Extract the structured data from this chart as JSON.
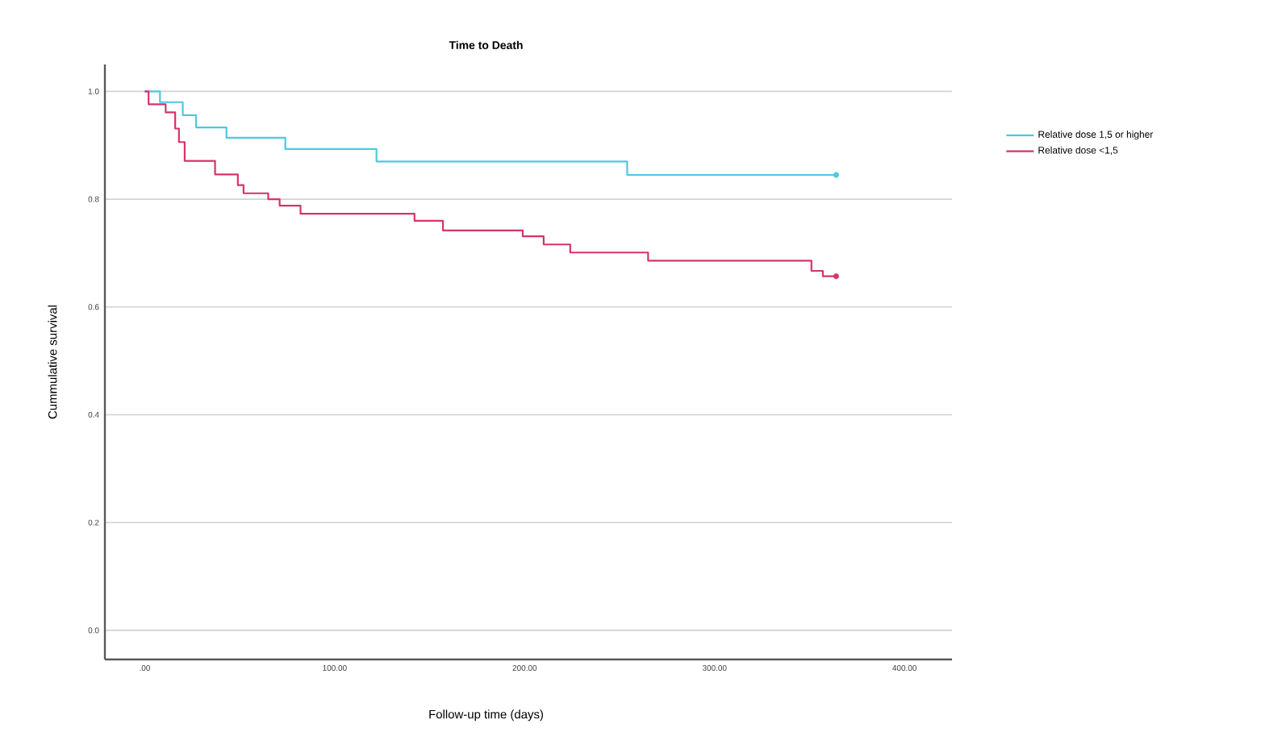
{
  "chart_data": {
    "type": "step",
    "title": "Time to Death",
    "xlabel": "Follow-up time (days)",
    "ylabel": "Cummulative survival",
    "xlim": [
      -21,
      425
    ],
    "ylim": [
      -0.054,
      1.05
    ],
    "xticks": [
      {
        "value": 0,
        "label": ".00"
      },
      {
        "value": 100,
        "label": "100.00"
      },
      {
        "value": 200,
        "label": "200.00"
      },
      {
        "value": 300,
        "label": "300.00"
      },
      {
        "value": 400,
        "label": "400.00"
      }
    ],
    "yticks": [
      {
        "value": 0,
        "label": "0.0"
      },
      {
        "value": 0.2,
        "label": "0.2"
      },
      {
        "value": 0.4,
        "label": "0.4"
      },
      {
        "value": 0.6,
        "label": "0.6"
      },
      {
        "value": 0.8,
        "label": "0.8"
      },
      {
        "value": 1.0,
        "label": "1.0"
      }
    ],
    "grid": "y",
    "legend": "right",
    "series": [
      {
        "name": "Relative dose 1,5 or higher",
        "color": "#4cc9e0",
        "x": [
          0,
          8,
          20,
          27,
          43,
          74,
          122,
          254,
          364
        ],
        "values": [
          1.0,
          0.98,
          0.956,
          0.933,
          0.914,
          0.893,
          0.87,
          0.845,
          0.845
        ]
      },
      {
        "name": "Relative dose <1,5",
        "color": "#d6336c",
        "x": [
          0,
          2,
          11,
          16,
          18,
          21,
          37,
          49,
          52,
          65,
          71,
          82,
          142,
          157,
          199,
          210,
          224,
          265,
          351,
          357,
          364
        ],
        "values": [
          1.0,
          0.976,
          0.961,
          0.931,
          0.906,
          0.871,
          0.846,
          0.826,
          0.811,
          0.8,
          0.788,
          0.773,
          0.76,
          0.742,
          0.731,
          0.716,
          0.701,
          0.686,
          0.667,
          0.657,
          0.657
        ]
      },
      {
        "type": "scatter",
        "color": "#4cc9e0",
        "x": [
          364
        ],
        "values": [
          0.845
        ]
      },
      {
        "type": "scatter",
        "color": "#d6336c",
        "x": [
          364
        ],
        "values": [
          0.657
        ]
      }
    ]
  }
}
